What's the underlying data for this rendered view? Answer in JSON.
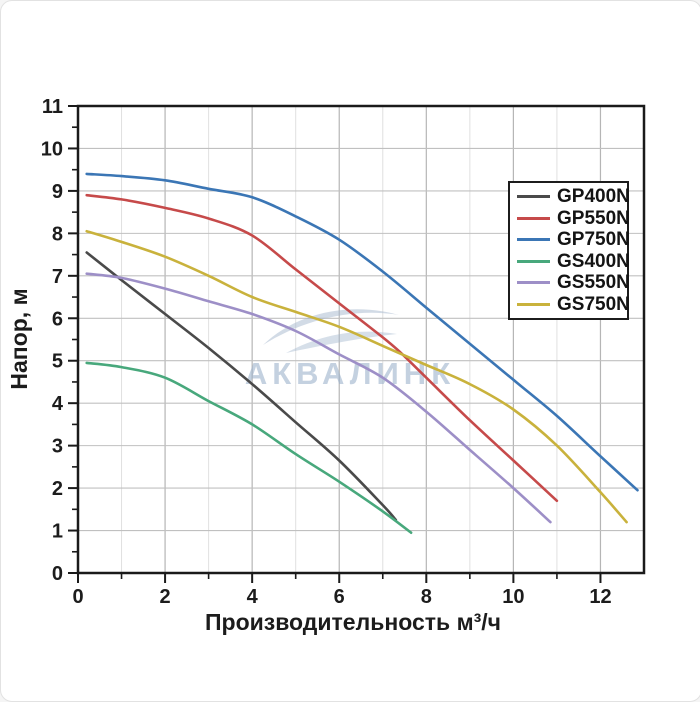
{
  "watermark": {
    "text": "АКВАЛИНК",
    "color": "#9db3cc"
  },
  "styles": {
    "grid_major": "#b5b5b5",
    "grid_minor": "#e0e0e0",
    "axis_color": "#1a1a1a",
    "background": "#ffffff"
  },
  "chart_data": {
    "type": "line",
    "title": "",
    "xlabel": "Производительность м³/ч",
    "ylabel": "Напор, м",
    "xlim": [
      0,
      13
    ],
    "ylim": [
      0,
      11
    ],
    "x_major_ticks": [
      0,
      2,
      4,
      6,
      8,
      10,
      12
    ],
    "x_minor_ticks": [
      1,
      3,
      5,
      7,
      9,
      11
    ],
    "y_major_ticks": [
      0,
      1,
      2,
      3,
      4,
      5,
      6,
      7,
      8,
      9,
      10,
      11
    ],
    "y_minor_ticks": [
      0.5,
      1.5,
      2.5,
      3.5,
      4.5,
      5.5,
      6.5,
      7.5,
      8.5,
      9.5,
      10.5
    ],
    "grid": "on, 1-unit spacing both axes",
    "legend_position": "upper-right",
    "series": [
      {
        "name": "GP400N",
        "color": "#4a4a4a",
        "points": [
          [
            0.2,
            7.55
          ],
          [
            1,
            6.9
          ],
          [
            2,
            6.1
          ],
          [
            3,
            5.3
          ],
          [
            4,
            4.45
          ],
          [
            5,
            3.55
          ],
          [
            6,
            2.65
          ],
          [
            7,
            1.6
          ],
          [
            7.3,
            1.25
          ]
        ]
      },
      {
        "name": "GP550N",
        "color": "#c64a4a",
        "points": [
          [
            0.2,
            8.9
          ],
          [
            1,
            8.8
          ],
          [
            2,
            8.6
          ],
          [
            3,
            8.35
          ],
          [
            4,
            7.95
          ],
          [
            5,
            7.15
          ],
          [
            6,
            6.35
          ],
          [
            7,
            5.55
          ],
          [
            7.4,
            5.2
          ],
          [
            8,
            4.6
          ],
          [
            9,
            3.6
          ],
          [
            10,
            2.65
          ],
          [
            11,
            1.7
          ]
        ]
      },
      {
        "name": "GP750N",
        "color": "#3b76b5",
        "points": [
          [
            0.2,
            9.4
          ],
          [
            1,
            9.35
          ],
          [
            2,
            9.25
          ],
          [
            3,
            9.05
          ],
          [
            4,
            8.85
          ],
          [
            5,
            8.4
          ],
          [
            6,
            7.85
          ],
          [
            7,
            7.1
          ],
          [
            8,
            6.25
          ],
          [
            9,
            5.4
          ],
          [
            10,
            4.55
          ],
          [
            11,
            3.7
          ],
          [
            12,
            2.75
          ],
          [
            12.85,
            1.95
          ]
        ]
      },
      {
        "name": "GS400N",
        "color": "#48a87c",
        "points": [
          [
            0.2,
            4.95
          ],
          [
            1,
            4.85
          ],
          [
            2,
            4.6
          ],
          [
            3,
            4.05
          ],
          [
            4,
            3.5
          ],
          [
            5,
            2.8
          ],
          [
            6,
            2.15
          ],
          [
            7,
            1.45
          ],
          [
            7.65,
            0.95
          ]
        ]
      },
      {
        "name": "GS550N",
        "color": "#9d8fc7",
        "points": [
          [
            0.2,
            7.05
          ],
          [
            1,
            6.95
          ],
          [
            2,
            6.7
          ],
          [
            3,
            6.4
          ],
          [
            4,
            6.1
          ],
          [
            5,
            5.7
          ],
          [
            6,
            5.15
          ],
          [
            7,
            4.6
          ],
          [
            8,
            3.8
          ],
          [
            9,
            2.9
          ],
          [
            10,
            2.0
          ],
          [
            10.85,
            1.2
          ]
        ]
      },
      {
        "name": "GS750N",
        "color": "#c9b23c",
        "points": [
          [
            0.2,
            8.05
          ],
          [
            1,
            7.8
          ],
          [
            2,
            7.45
          ],
          [
            3,
            7.0
          ],
          [
            4,
            6.5
          ],
          [
            5,
            6.15
          ],
          [
            6,
            5.8
          ],
          [
            7,
            5.35
          ],
          [
            8,
            4.9
          ],
          [
            9,
            4.45
          ],
          [
            10,
            3.85
          ],
          [
            11,
            3.0
          ],
          [
            12,
            1.9
          ],
          [
            12.6,
            1.2
          ]
        ]
      }
    ]
  }
}
